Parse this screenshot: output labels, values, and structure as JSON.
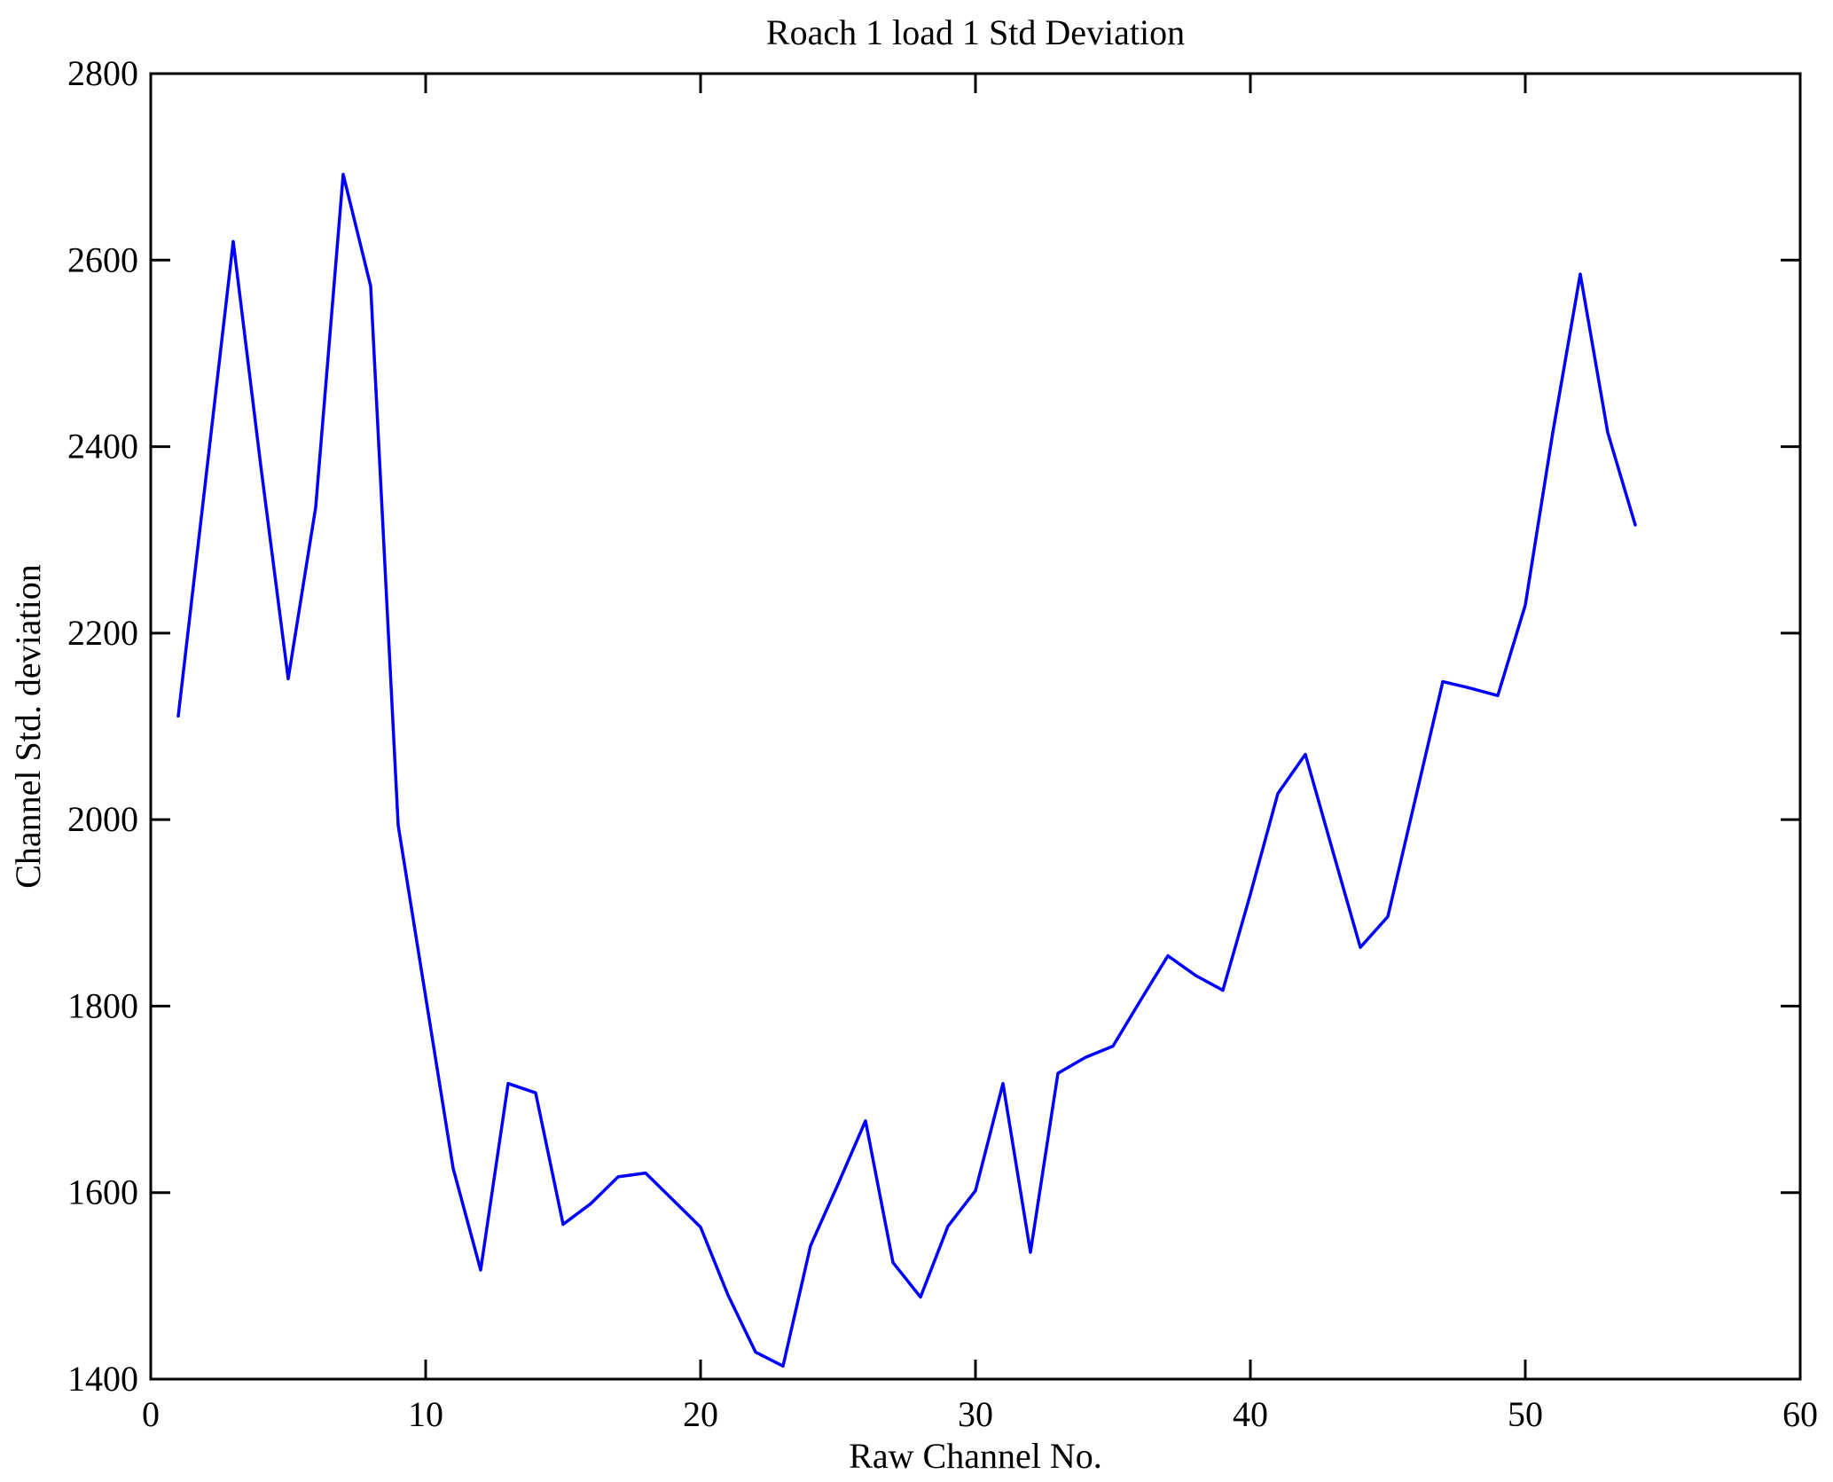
{
  "chart_data": {
    "type": "line",
    "title": "Roach 1 load 1 Std Deviation",
    "xlabel": "Raw Channel No.",
    "ylabel": "Channel Std. deviation",
    "xlim": [
      0,
      60
    ],
    "ylim": [
      1400,
      2800
    ],
    "xticks": [
      0,
      10,
      20,
      30,
      40,
      50,
      60
    ],
    "yticks": [
      1400,
      1600,
      1800,
      2000,
      2200,
      2400,
      2600,
      2800
    ],
    "grid": false,
    "legend": "none",
    "line_color": "#0000ff",
    "axis_color": "#000000",
    "background_color": "#ffffff",
    "x_start": 1,
    "x": [
      1,
      2,
      3,
      4,
      5,
      6,
      7,
      8,
      9,
      10,
      11,
      12,
      13,
      14,
      15,
      16,
      17,
      18,
      19,
      20,
      21,
      22,
      23,
      24,
      25,
      26,
      27,
      28,
      29,
      30,
      31,
      32,
      33,
      34,
      35,
      36,
      37,
      38,
      39,
      40,
      41,
      42,
      43,
      44,
      45,
      46,
      47,
      48,
      49,
      50,
      51,
      52,
      53,
      54
    ],
    "values": [
      2111,
      2365,
      2620,
      2380,
      2151,
      2335,
      2692,
      2572,
      1994,
      1810,
      1626,
      1517,
      1717,
      1707,
      1566,
      1588,
      1617,
      1621,
      1592,
      1563,
      1490,
      1429,
      1414,
      1543,
      1609,
      1677,
      1525,
      1488,
      1564,
      1602,
      1717,
      1536,
      1728,
      1745,
      1757,
      1806,
      1854,
      1833,
      1817,
      1920,
      2028,
      2070,
      1966,
      1863,
      1896,
      2022,
      2148,
      2141,
      2133,
      2230,
      2415,
      2585,
      2415,
      2316
    ]
  }
}
